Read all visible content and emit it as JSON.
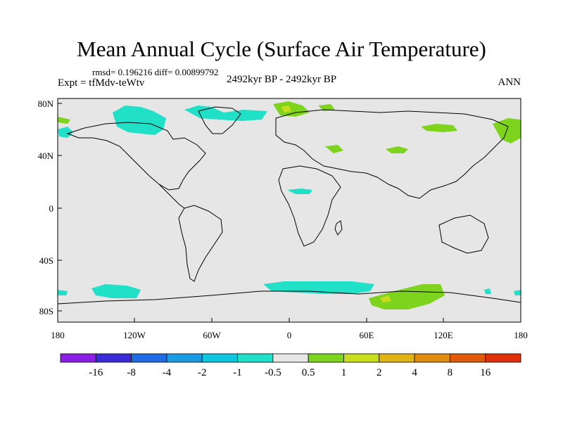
{
  "title": "Mean Annual Cycle (Surface Air Temperature)",
  "subtitle": "rmsd= 0.196216 diff= 0.00899792",
  "experiment": "Expt = tfMdv-teWtv",
  "period": "2492kyr BP - 2492kyr BP",
  "season": "ANN",
  "axes": {
    "lat_labels": [
      "80N",
      "40N",
      "0",
      "40S",
      "80S"
    ],
    "lon_labels": [
      "180",
      "120W",
      "60W",
      "0",
      "60E",
      "120E",
      "180"
    ]
  },
  "colorbar": {
    "colors": [
      "#8b1fe6",
      "#3a2bd6",
      "#1e6be6",
      "#1a9be6",
      "#0ec7df",
      "#20e0c8",
      "#e6e6e6",
      "#7ed31c",
      "#c8de1c",
      "#e0b414",
      "#e08a0e",
      "#e05a0a",
      "#e0300a"
    ],
    "labels": [
      "-16",
      "-8",
      "-4",
      "-2",
      "-1",
      "-0.5",
      "0.5",
      "1",
      "2",
      "4",
      "8",
      "16"
    ]
  },
  "colors": {
    "background": "#e6e6e6",
    "cool": "#20e0c8",
    "warm": "#7ed31c",
    "warmer": "#c8de1c"
  }
}
